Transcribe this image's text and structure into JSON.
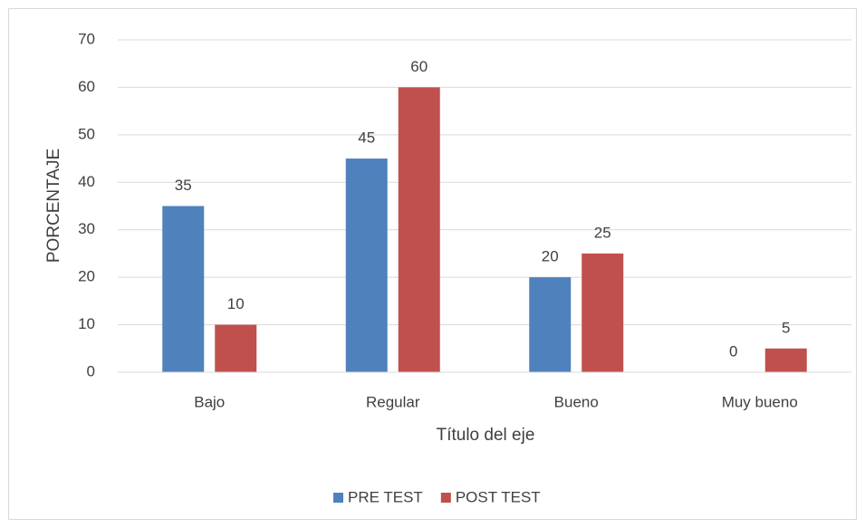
{
  "chart_data": {
    "type": "bar",
    "categories": [
      "Bajo",
      "Regular",
      "Bueno",
      "Muy bueno"
    ],
    "series": [
      {
        "name": "PRE TEST",
        "color": "#4f81bd",
        "values": [
          35,
          45,
          20,
          0
        ]
      },
      {
        "name": "POST TEST",
        "color": "#c0504d",
        "values": [
          10,
          60,
          25,
          5
        ]
      }
    ],
    "ylabel": "PORCENTAJE",
    "xlabel": "Título del eje",
    "ylim": [
      0,
      70
    ],
    "yticks": [
      0,
      10,
      20,
      30,
      40,
      50,
      60,
      70
    ],
    "grid": true,
    "legend": "bottom"
  }
}
